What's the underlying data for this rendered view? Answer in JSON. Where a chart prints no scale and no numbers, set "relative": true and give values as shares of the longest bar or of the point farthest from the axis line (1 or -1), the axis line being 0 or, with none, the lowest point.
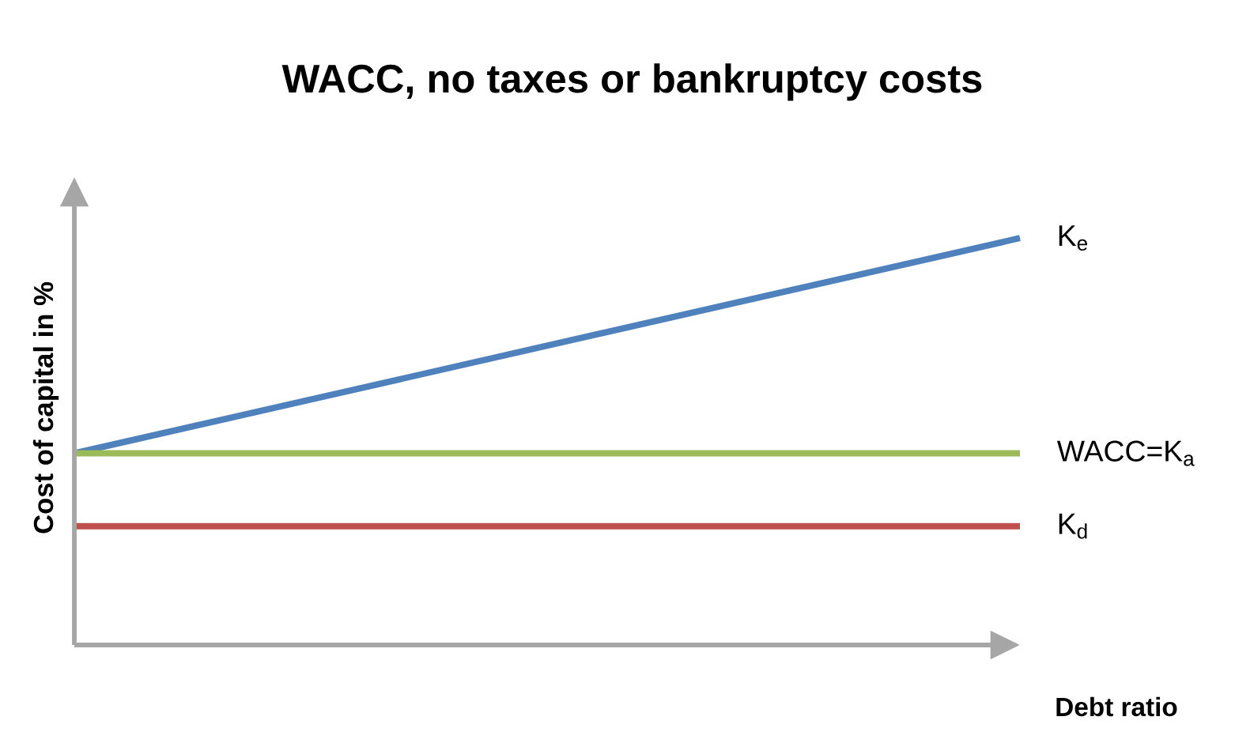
{
  "chart_data": {
    "type": "line",
    "title": "WACC, no taxes or bankruptcy costs",
    "xlabel": "Debt ratio",
    "ylabel": "Cost of capital in %",
    "categories": [
      null,
      null
    ],
    "relative": true,
    "legend": false,
    "marker": "none",
    "line_style": "solid",
    "series": [
      {
        "name": "K$_{e}$",
        "color": "#4f81bd",
        "values": [
          0.471,
          1.0
        ]
      },
      {
        "name": "WACC=K$_{a}$",
        "color": "#9bbb59",
        "values": [
          0.471,
          0.471
        ]
      },
      {
        "name": "K$_{d}$",
        "color": "#c0504d",
        "values": [
          0.292,
          0.292
        ]
      }
    ]
  }
}
